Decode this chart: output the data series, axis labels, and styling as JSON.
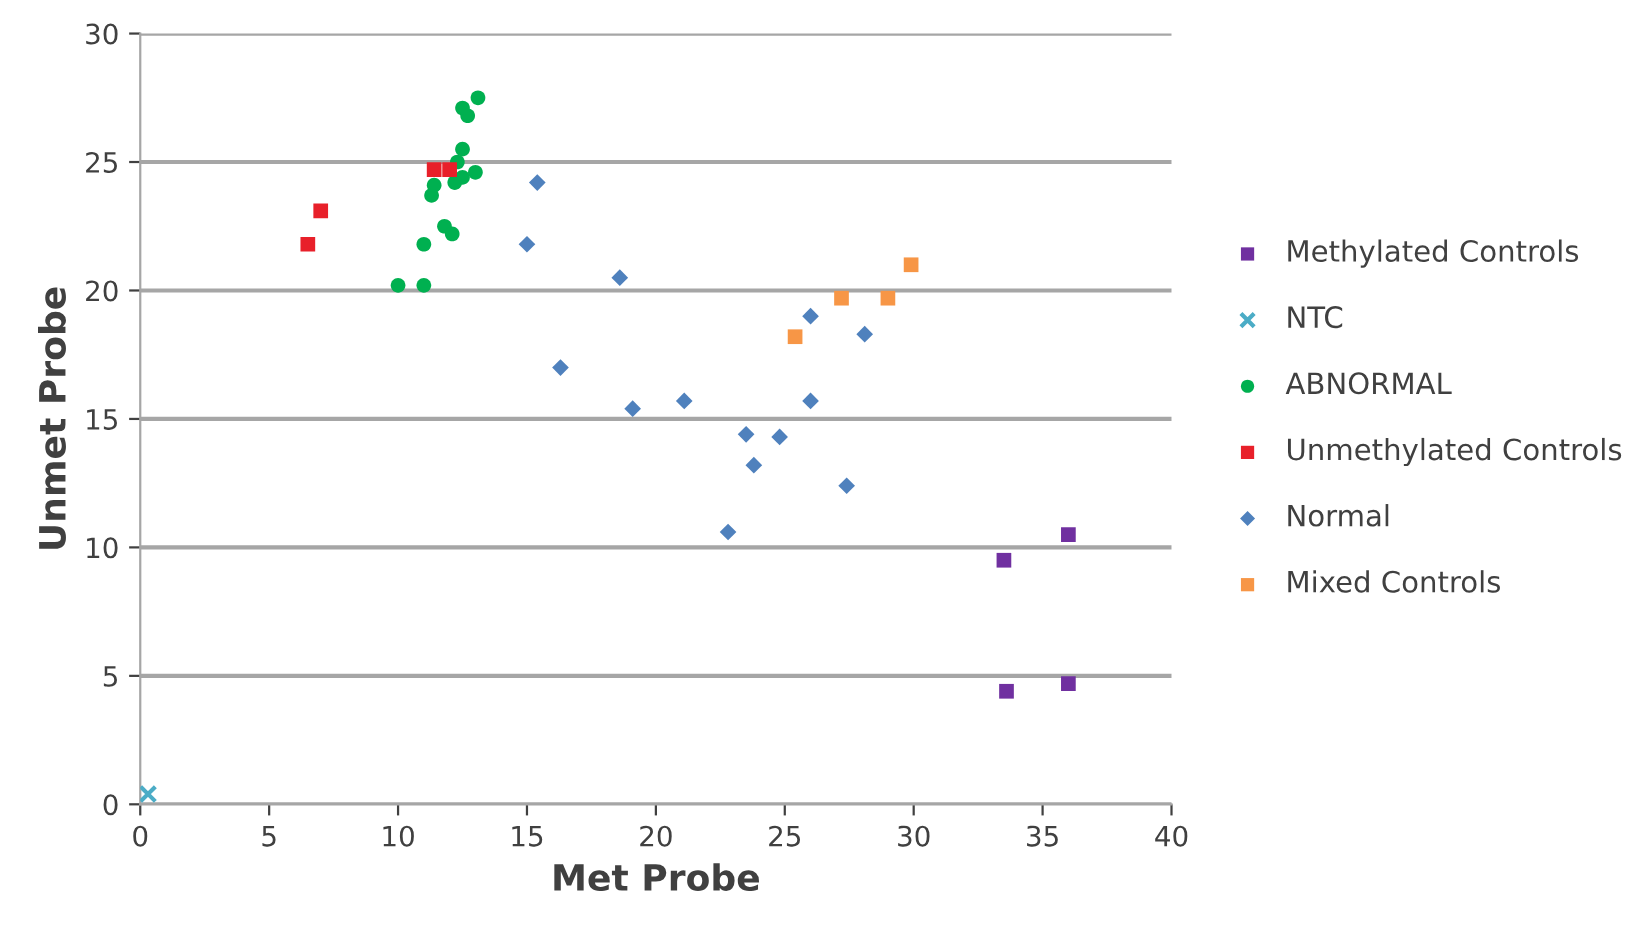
{
  "chart_data": {
    "type": "scatter",
    "xlabel": "Met Probe",
    "ylabel": "Unmet Probe",
    "xlim": [
      0,
      40
    ],
    "xticks": [
      0,
      5,
      10,
      15,
      20,
      25,
      30,
      35,
      40
    ],
    "ylim": [
      0,
      30
    ],
    "yticks": [
      0,
      5,
      10,
      15,
      20,
      25,
      30
    ],
    "grid": "y",
    "legend": "right",
    "series": [
      {
        "name": "Methylated Controls",
        "color": "#7030a0",
        "marker": "square",
        "x": [
          33.5,
          36.0,
          33.6,
          36.0
        ],
        "values": [
          9.5,
          10.5,
          4.4,
          4.7
        ]
      },
      {
        "name": "NTC",
        "color": "#4bacc6",
        "marker": "cross",
        "x": [
          0.3
        ],
        "values": [
          0.4
        ]
      },
      {
        "name": "ABNORMAL",
        "color": "#00b050",
        "marker": "circle",
        "x": [
          10.0,
          11.0,
          11.0,
          11.8,
          12.1,
          11.3,
          11.4,
          12.5,
          13.0,
          12.3,
          12.5,
          12.7,
          12.5,
          13.1,
          12.2
        ],
        "values": [
          20.2,
          20.2,
          21.8,
          22.5,
          22.2,
          23.7,
          24.1,
          24.4,
          24.6,
          25.0,
          25.5,
          26.8,
          27.1,
          27.5,
          24.2
        ]
      },
      {
        "name": "Unmethylated Controls",
        "color": "#e8202a",
        "marker": "square",
        "x": [
          6.5,
          7.0,
          11.4,
          12.0
        ],
        "values": [
          21.8,
          23.1,
          24.7,
          24.7
        ]
      },
      {
        "name": "Normal",
        "color": "#4f81bd",
        "marker": "diamond",
        "x": [
          15.4,
          15.0,
          18.6,
          16.3,
          19.1,
          21.1,
          23.5,
          24.8,
          23.8,
          22.8,
          26.0,
          26.0,
          28.1,
          27.4
        ],
        "values": [
          24.2,
          21.8,
          20.5,
          17.0,
          15.4,
          15.7,
          14.4,
          14.3,
          13.2,
          10.6,
          19.0,
          15.7,
          18.3,
          12.4
        ]
      },
      {
        "name": "Mixed Controls",
        "color": "#f79646",
        "marker": "square",
        "x": [
          25.4,
          27.2,
          29.0,
          29.9
        ],
        "values": [
          18.2,
          19.7,
          19.7,
          21.0
        ]
      }
    ]
  }
}
